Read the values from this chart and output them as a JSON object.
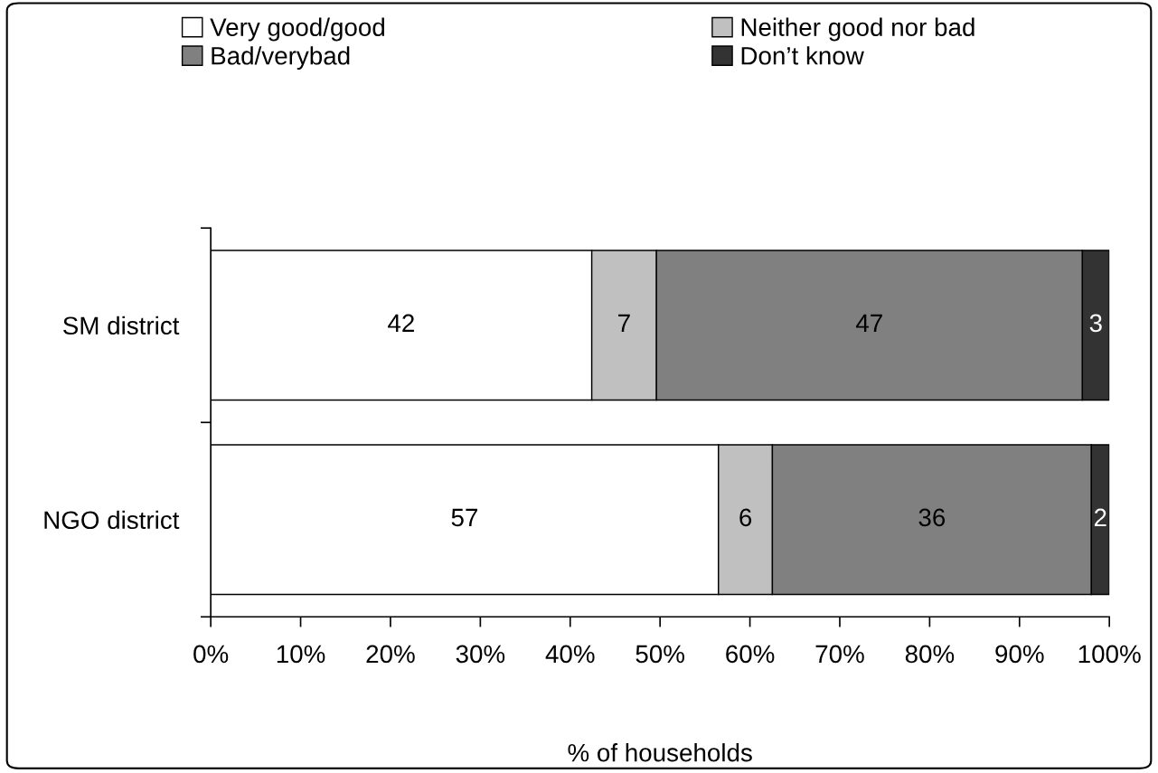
{
  "chart_data": {
    "type": "bar",
    "orientation": "horizontal",
    "stacked": true,
    "xlabel": "% of households",
    "categories": [
      "SM district",
      "NGO district"
    ],
    "series": [
      {
        "name": "Very good/good",
        "color": "#ffffff",
        "values": [
          42.4,
          56.5
        ],
        "value_labels": [
          "42",
          "57"
        ]
      },
      {
        "name": "Neither good nor bad",
        "color": "#c0c0c0",
        "values": [
          7.2,
          6.0
        ],
        "value_labels": [
          "7",
          "6"
        ]
      },
      {
        "name": "Bad/verybad",
        "color": "#808080",
        "values": [
          47.4,
          35.5
        ],
        "value_labels": [
          "47",
          "36"
        ]
      },
      {
        "name": "Don’t know",
        "color": "#333333",
        "values": [
          3.0,
          2.0
        ],
        "value_labels": [
          "3",
          "2"
        ]
      }
    ],
    "xlim": [
      0,
      100
    ],
    "xticks": [
      {
        "value": 0,
        "label": "0%"
      },
      {
        "value": 10,
        "label": "10%"
      },
      {
        "value": 20,
        "label": "20%"
      },
      {
        "value": 30,
        "label": "30%"
      },
      {
        "value": 40,
        "label": "40%"
      },
      {
        "value": 50,
        "label": "50%"
      },
      {
        "value": 60,
        "label": "60%"
      },
      {
        "value": 70,
        "label": "70%"
      },
      {
        "value": 80,
        "label": "80%"
      },
      {
        "value": 90,
        "label": "90%"
      },
      {
        "value": 100,
        "label": "100%"
      }
    ],
    "legend": "top",
    "grid": false
  }
}
